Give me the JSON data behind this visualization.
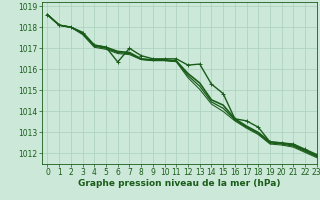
{
  "background_color": "#cce8d8",
  "grid_color": "#aacfbc",
  "line_color_dark": "#1a5c1a",
  "xlabel": "Graphe pression niveau de la mer (hPa)",
  "xlabel_fontsize": 6.5,
  "tick_fontsize": 5.5,
  "xlim": [
    -0.5,
    23
  ],
  "ylim": [
    1011.5,
    1019.2
  ],
  "yticks": [
    1012,
    1013,
    1014,
    1015,
    1016,
    1017,
    1018,
    1019
  ],
  "xticks": [
    0,
    1,
    2,
    3,
    4,
    5,
    6,
    7,
    8,
    9,
    10,
    11,
    12,
    13,
    14,
    15,
    16,
    17,
    18,
    19,
    20,
    21,
    22,
    23
  ],
  "series": [
    {
      "x": [
        0,
        1,
        2,
        3,
        4,
        5,
        6,
        7,
        8,
        9,
        10,
        11,
        12,
        13,
        14,
        15,
        16,
        17,
        18,
        19,
        20,
        21,
        22,
        23
      ],
      "y": [
        1018.6,
        1018.1,
        1018.0,
        1017.75,
        1017.15,
        1017.05,
        1016.85,
        1016.8,
        1016.5,
        1016.45,
        1016.45,
        1016.4,
        1015.8,
        1015.35,
        1014.55,
        1014.3,
        1013.65,
        1013.3,
        1013.0,
        1012.55,
        1012.5,
        1012.4,
        1012.15,
        1011.9
      ],
      "marker": null,
      "lw": 1.2,
      "color": "#1a5c1a"
    },
    {
      "x": [
        0,
        1,
        2,
        3,
        4,
        5,
        6,
        7,
        8,
        9,
        10,
        11,
        12,
        13,
        14,
        15,
        16,
        17,
        18,
        19,
        20,
        21,
        22,
        23
      ],
      "y": [
        1018.6,
        1018.1,
        1018.0,
        1017.7,
        1017.1,
        1017.0,
        1016.8,
        1016.75,
        1016.48,
        1016.43,
        1016.43,
        1016.38,
        1015.7,
        1015.2,
        1014.45,
        1014.15,
        1013.6,
        1013.25,
        1012.95,
        1012.5,
        1012.45,
        1012.35,
        1012.1,
        1011.85
      ],
      "marker": null,
      "lw": 0.9,
      "color": "#1a5c1a"
    },
    {
      "x": [
        0,
        1,
        2,
        3,
        4,
        5,
        6,
        7,
        8,
        9,
        10,
        11,
        12,
        13,
        14,
        15,
        16,
        17,
        18,
        19,
        20,
        21,
        22,
        23
      ],
      "y": [
        1018.6,
        1018.1,
        1018.0,
        1017.65,
        1017.05,
        1016.95,
        1016.75,
        1016.7,
        1016.46,
        1016.41,
        1016.41,
        1016.36,
        1015.6,
        1015.05,
        1014.35,
        1014.0,
        1013.55,
        1013.2,
        1012.9,
        1012.45,
        1012.4,
        1012.3,
        1012.05,
        1011.8
      ],
      "marker": null,
      "lw": 0.75,
      "color": "#1a5c1a"
    },
    {
      "x": [
        0,
        1,
        2,
        3,
        4,
        5,
        6,
        7,
        8,
        9,
        10,
        11,
        12,
        13,
        14,
        15,
        16,
        17,
        18,
        19,
        20,
        21,
        22,
        23
      ],
      "y": [
        1018.6,
        1018.1,
        1018.0,
        1017.75,
        1017.15,
        1017.05,
        1016.35,
        1017.0,
        1016.65,
        1016.5,
        1016.5,
        1016.5,
        1016.2,
        1016.25,
        1015.3,
        1014.85,
        1013.65,
        1013.55,
        1013.25,
        1012.55,
        1012.5,
        1012.45,
        1012.2,
        1011.95
      ],
      "marker": "+",
      "ms": 3.5,
      "lw": 1.0,
      "color": "#1a5c1a"
    }
  ]
}
